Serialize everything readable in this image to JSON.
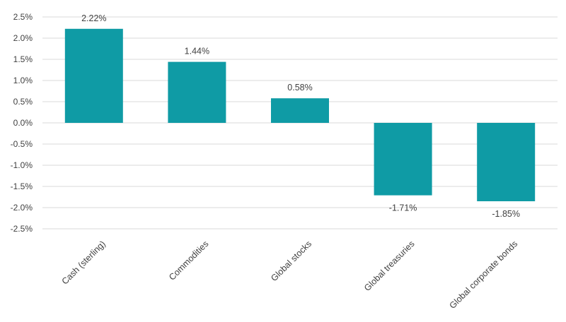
{
  "chart_data": {
    "type": "bar",
    "title": "",
    "xlabel": "",
    "ylabel": "",
    "categories": [
      "Cash (sterling)",
      "Commodities",
      "Global stocks",
      "Global treasuries",
      "Global corporate bonds"
    ],
    "values": [
      2.22,
      1.44,
      0.58,
      -1.71,
      -1.85
    ],
    "value_labels": [
      "2.22%",
      "1.44%",
      "0.58%",
      "-1.71%",
      "-1.85%"
    ],
    "ylim": [
      -2.5,
      2.5
    ],
    "yticks": [
      2.5,
      2.0,
      1.5,
      1.0,
      0.5,
      0.0,
      -0.5,
      -1.0,
      -1.5,
      -2.0,
      -2.5
    ],
    "ytick_labels": [
      "2.5%",
      "2.0%",
      "1.5%",
      "1.0%",
      "0.5%",
      "0.0%",
      "-0.5%",
      "-1.0%",
      "-1.5%",
      "-2.0%",
      "-2.5%"
    ],
    "grid": true,
    "legend": "none",
    "colors": {
      "bar": "#0f9ba5",
      "grid": "#d9d9d9",
      "text": "#404040"
    }
  }
}
